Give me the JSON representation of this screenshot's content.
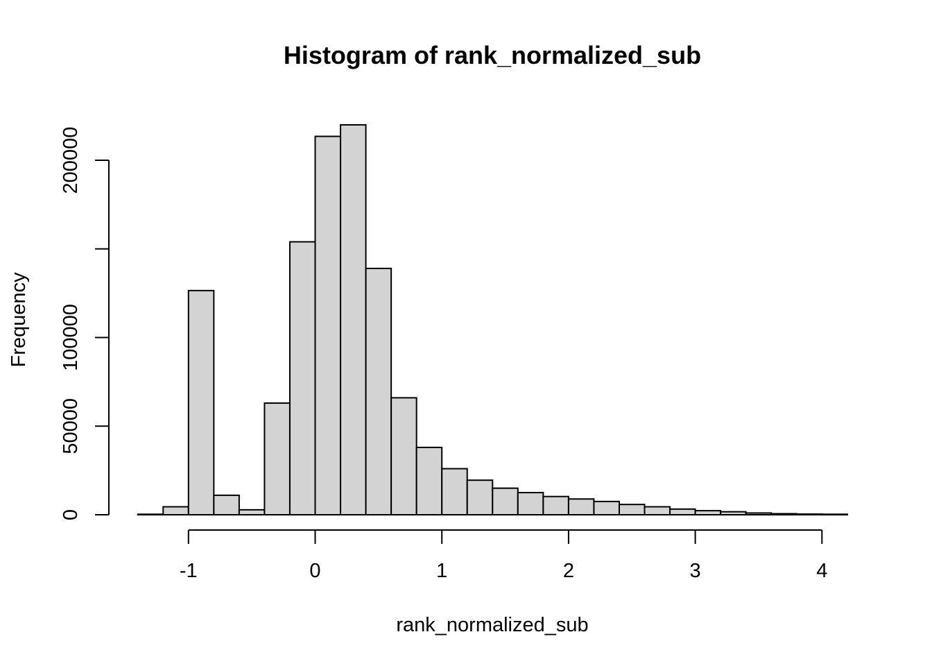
{
  "chart_data": {
    "type": "bar",
    "title": "Histogram of rank_normalized_sub",
    "xlabel": "rank_normalized_sub",
    "ylabel": "Frequency",
    "bin_edges": [
      -1.4,
      -1.2,
      -1.0,
      -0.8,
      -0.6,
      -0.4,
      -0.2,
      0.0,
      0.2,
      0.4,
      0.6,
      0.8,
      1.0,
      1.2,
      1.4,
      1.6,
      1.8,
      2.0,
      2.2,
      2.4,
      2.6,
      2.8,
      3.0,
      3.2,
      3.4,
      3.6,
      3.8,
      4.0,
      4.2
    ],
    "values": [
      300,
      4500,
      126500,
      11000,
      2800,
      63000,
      154000,
      213500,
      220000,
      139000,
      66000,
      38000,
      26000,
      19500,
      15000,
      12500,
      10300,
      8900,
      7500,
      5800,
      4500,
      3200,
      2300,
      1700,
      1000,
      600,
      400,
      300
    ],
    "xlim": [
      -1.4,
      4.2
    ],
    "ylim": [
      0,
      225000
    ],
    "x_ticks": [
      -1,
      0,
      1,
      2,
      3,
      4
    ],
    "x_tick_labels": [
      "-1",
      "0",
      "1",
      "2",
      "3",
      "4"
    ],
    "y_ticks": [
      0,
      50000,
      100000,
      150000,
      200000
    ],
    "y_tick_labels": [
      "0",
      "50000",
      "100000",
      "",
      "200000"
    ],
    "bar_color": "#d3d3d3",
    "edge_color": "#000000",
    "grid": false,
    "legend": "none"
  }
}
